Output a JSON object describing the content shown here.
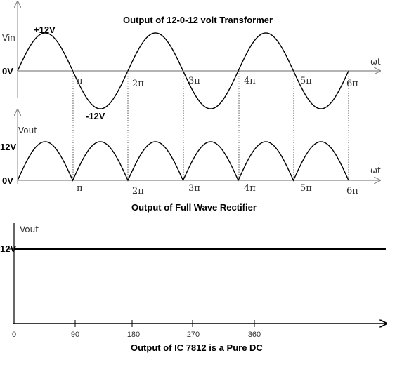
{
  "panel1": {
    "title": "Output of 12-0-12 volt Transformer",
    "ylabel": "Vin",
    "peak_pos": "+12V",
    "peak_neg": "-12V",
    "zero": "0V",
    "xlabel": "ωt",
    "pi_labels": [
      "π",
      "2π",
      "3π",
      "4π",
      "5π",
      "6π"
    ]
  },
  "panel2": {
    "title": "Output of Full Wave Rectifier",
    "ylabel": "Vout",
    "peak": "12V",
    "zero": "0V",
    "xlabel": "ωt",
    "pi_labels": [
      "π",
      "2π",
      "3π",
      "4π",
      "5π",
      "6π"
    ]
  },
  "panel3": {
    "title": "Output of IC 7812 is a Pure DC",
    "ylabel": "Vout",
    "level": "12V",
    "x_ticks": [
      "0",
      "90",
      "180",
      "270",
      "360"
    ]
  }
}
